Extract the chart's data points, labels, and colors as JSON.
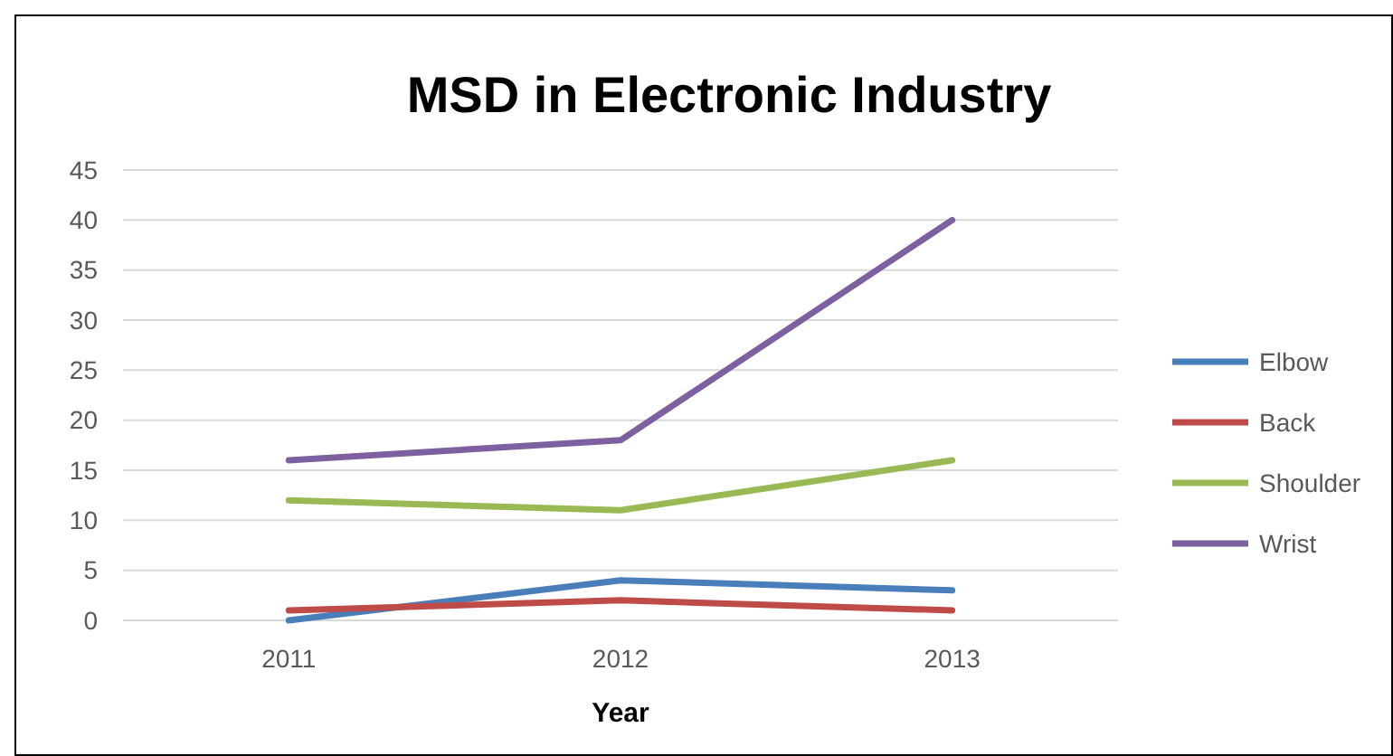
{
  "chart_data": {
    "type": "line",
    "title": "MSD in Electronic Industry",
    "xlabel": "Year",
    "categories": [
      "2011",
      "2012",
      "2013"
    ],
    "series": [
      {
        "name": "Elbow",
        "color": "#4a7ebb",
        "values": [
          0,
          4,
          3
        ]
      },
      {
        "name": "Back",
        "color": "#be4b48",
        "values": [
          1,
          2,
          1
        ]
      },
      {
        "name": "Shoulder",
        "color": "#98b954",
        "values": [
          12,
          11,
          16
        ]
      },
      {
        "name": "Wrist",
        "color": "#7d60a0",
        "values": [
          16,
          18,
          40
        ]
      }
    ],
    "ylim": [
      0,
      45
    ],
    "yticks": [
      0,
      5,
      10,
      15,
      20,
      25,
      30,
      35,
      40,
      45
    ],
    "grid": "y",
    "legend": "right",
    "marker": "none",
    "line_style": "solid"
  }
}
